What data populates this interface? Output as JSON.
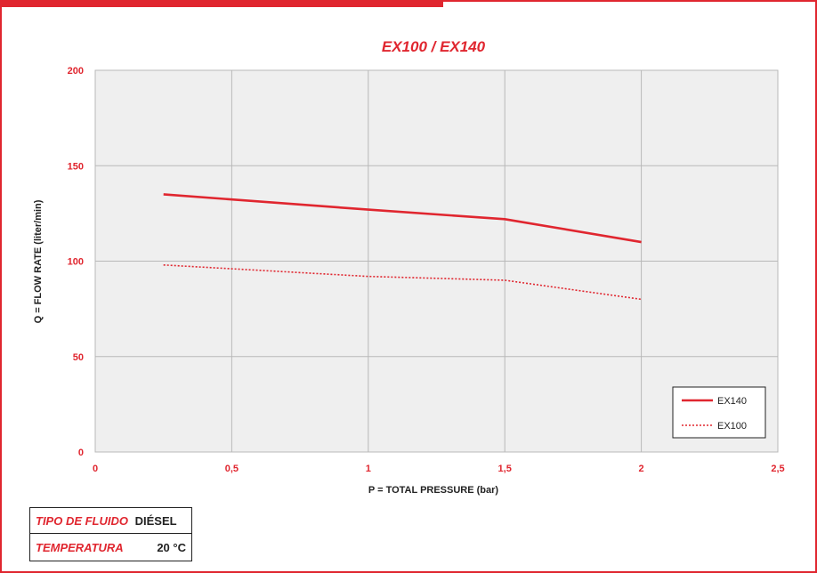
{
  "colors": {
    "accent": "#e0262f",
    "grid": "#b8b8b8",
    "plot_bg": "#efefef",
    "text": "#222222"
  },
  "chart_data": {
    "type": "line",
    "title": "EX100 / EX140",
    "xlabel": "P = TOTAL PRESSURE (bar)",
    "ylabel": "Q = FLOW RATE (liter/min)",
    "xlim": [
      0,
      2.5
    ],
    "ylim": [
      0,
      200
    ],
    "x_ticks": [
      0,
      0.5,
      1,
      1.5,
      2,
      2.5
    ],
    "x_tick_labels": [
      "0",
      "0,5",
      "1",
      "1,5",
      "2",
      "2,5"
    ],
    "y_ticks": [
      0,
      50,
      100,
      150,
      200
    ],
    "y_tick_labels": [
      "0",
      "50",
      "100",
      "150",
      "200"
    ],
    "grid": true,
    "legend_position": "bottom-right",
    "series": [
      {
        "name": "EX140",
        "style": "solid",
        "color": "#e0262f",
        "x": [
          0.25,
          1,
          1.5,
          2
        ],
        "y": [
          135,
          127,
          122,
          110
        ]
      },
      {
        "name": "EX100",
        "style": "dotted",
        "color": "#e0262f",
        "x": [
          0.25,
          1,
          1.5,
          2
        ],
        "y": [
          98,
          92,
          90,
          80
        ]
      }
    ]
  },
  "specs": {
    "fluid_label": "TIPO DE FLUIDO",
    "fluid_value": "DIÉSEL",
    "temp_label": "TEMPERATURA",
    "temp_value": "20 °C"
  }
}
